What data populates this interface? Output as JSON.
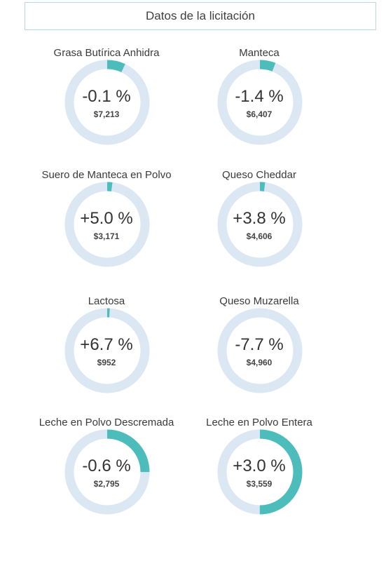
{
  "header": {
    "title": "Datos de la licitación"
  },
  "colors": {
    "track": "#dbe7f3",
    "fill": "#4dbdbb",
    "text": "#333333"
  },
  "chart_data": {
    "type": "donut-grid",
    "items": [
      {
        "name": "Grasa Butírica Anhidra",
        "change": "-0.1 %",
        "price": "$7,213",
        "fill_fraction": 0.07
      },
      {
        "name": "Manteca",
        "change": "-1.4 %",
        "price": "$6,407",
        "fill_fraction": 0.06
      },
      {
        "name": "Suero de Manteca en Polvo",
        "change": "+5.0 %",
        "price": "$3,171",
        "fill_fraction": 0.02
      },
      {
        "name": "Queso Cheddar",
        "change": "+3.8 %",
        "price": "$4,606",
        "fill_fraction": 0.02
      },
      {
        "name": "Lactosa",
        "change": "+6.7 %",
        "price": "$952",
        "fill_fraction": 0.01
      },
      {
        "name": "Queso Muzarella",
        "change": "-7.7 %",
        "price": "$4,960",
        "fill_fraction": 0
      },
      {
        "name": "Leche en Polvo Descremada",
        "change": "-0.6 %",
        "price": "$2,795",
        "fill_fraction": 0.25
      },
      {
        "name": "Leche en Polvo Entera",
        "change": "+3.0 %",
        "price": "$3,559",
        "fill_fraction": 0.5
      }
    ]
  }
}
